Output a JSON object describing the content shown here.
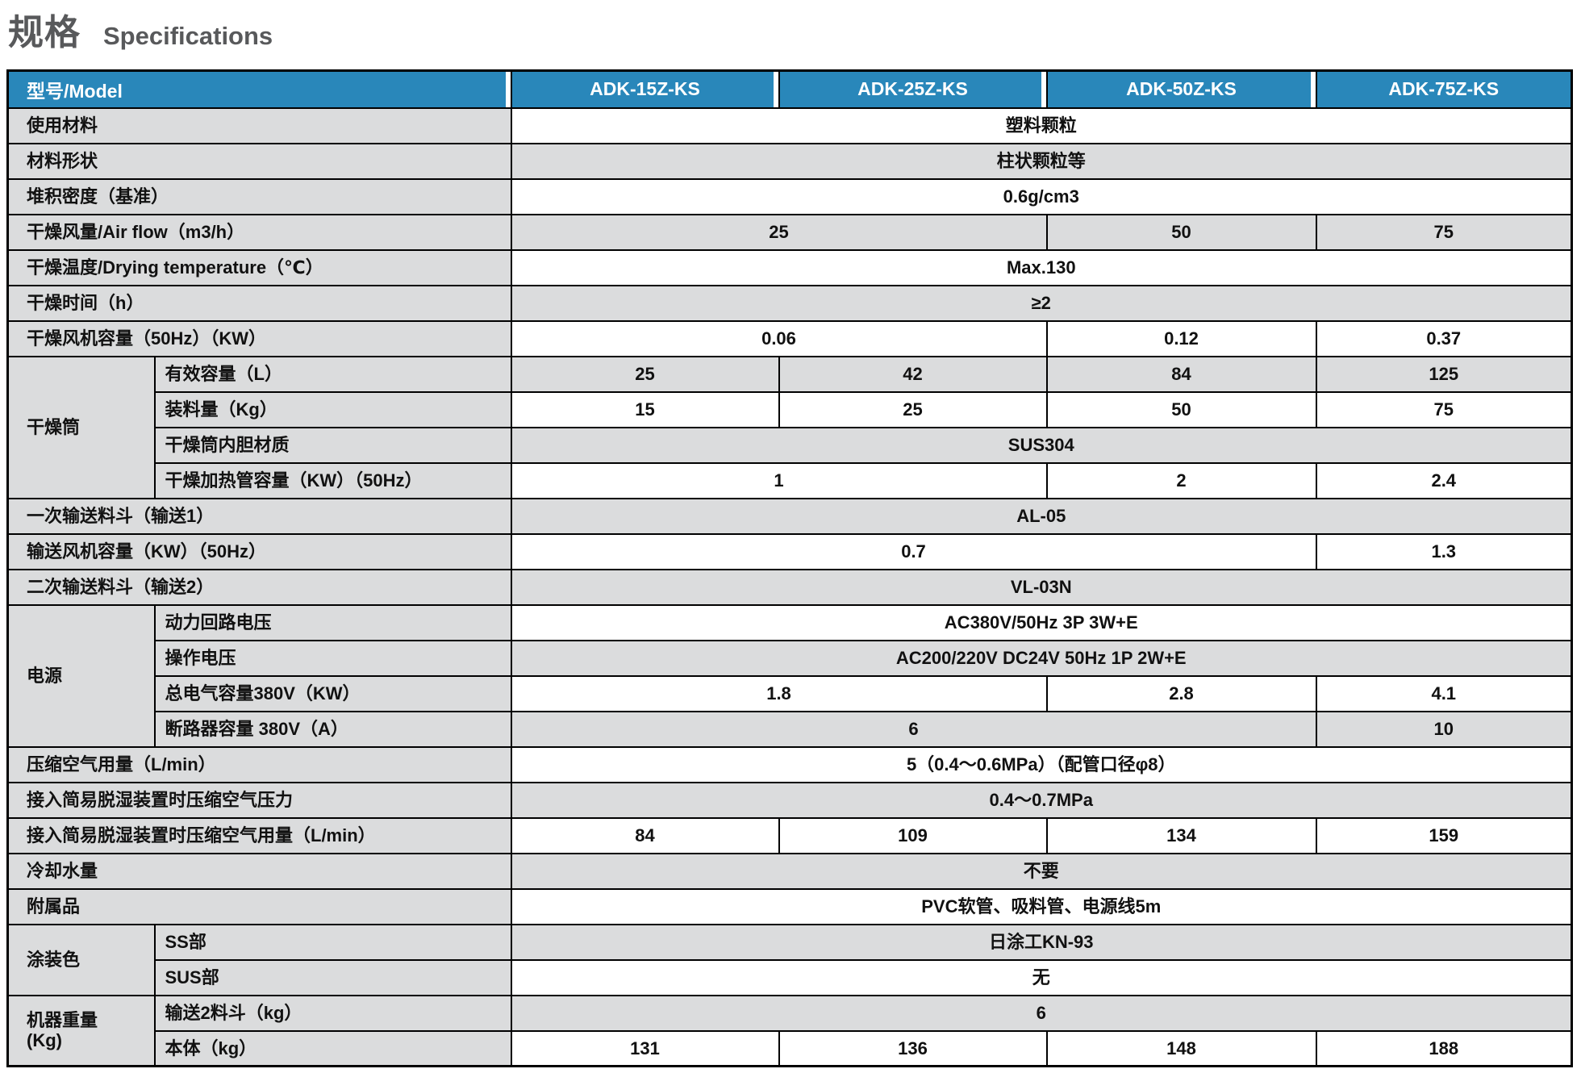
{
  "title": {
    "zh": "规格",
    "en": "Specifications"
  },
  "colors": {
    "header_bg": "#2987BA",
    "header_text": "#FFFFFF",
    "label_cell_bg": "#DBDCDD",
    "shaded_value_bg": "#DBDCDD",
    "value_bg": "#FFFFFF",
    "border": "#000000",
    "title_text": "#58595B"
  },
  "table": {
    "corner_label": "型号/Model",
    "models": [
      "ADK-15Z-KS",
      "ADK-25Z-KS",
      "ADK-50Z-KS",
      "ADK-75Z-KS"
    ],
    "rows": [
      {
        "label": "使用材料",
        "cells": [
          {
            "text": "塑料颗粒",
            "span": 4
          }
        ],
        "shaded": false
      },
      {
        "label": "材料形状",
        "cells": [
          {
            "text": "柱状颗粒等",
            "span": 4
          }
        ],
        "shaded": true
      },
      {
        "label": "堆积密度（基准）",
        "cells": [
          {
            "text": "0.6g/cm3",
            "span": 4
          }
        ],
        "shaded": false
      },
      {
        "label": "干燥风量/Air flow（m3/h）",
        "cells": [
          {
            "text": "25",
            "span": 2
          },
          {
            "text": "50",
            "span": 1
          },
          {
            "text": "75",
            "span": 1
          }
        ],
        "shaded": true
      },
      {
        "label": "干燥温度/Drying temperature（℃）",
        "cells": [
          {
            "text": "Max.130",
            "span": 4
          }
        ],
        "shaded": false
      },
      {
        "label": "干燥时间（h）",
        "cells": [
          {
            "text": "≥2",
            "span": 4
          }
        ],
        "shaded": true
      },
      {
        "label": "干燥风机容量（50Hz）（KW）",
        "cells": [
          {
            "text": "0.06",
            "span": 2
          },
          {
            "text": "0.12",
            "span": 1
          },
          {
            "text": "0.37",
            "span": 1
          }
        ],
        "shaded": false
      },
      {
        "group": {
          "label": "干燥筒",
          "rowspan": 4
        },
        "in_group": true,
        "label": "有效容量（L）",
        "cells": [
          {
            "text": "25",
            "span": 1
          },
          {
            "text": "42",
            "span": 1
          },
          {
            "text": "84",
            "span": 1
          },
          {
            "text": "125",
            "span": 1
          }
        ],
        "shaded": true
      },
      {
        "in_group": true,
        "label": "装料量（Kg）",
        "cells": [
          {
            "text": "15",
            "span": 1
          },
          {
            "text": "25",
            "span": 1
          },
          {
            "text": "50",
            "span": 1
          },
          {
            "text": "75",
            "span": 1
          }
        ],
        "shaded": false
      },
      {
        "in_group": true,
        "label": "干燥筒内胆材质",
        "cells": [
          {
            "text": "SUS304",
            "span": 4
          }
        ],
        "shaded": true
      },
      {
        "in_group": true,
        "label": "干燥加热管容量（KW）（50Hz）",
        "cells": [
          {
            "text": "1",
            "span": 2
          },
          {
            "text": "2",
            "span": 1
          },
          {
            "text": "2.4",
            "span": 1
          }
        ],
        "shaded": false
      },
      {
        "label": "一次输送料斗（输送1）",
        "cells": [
          {
            "text": "AL-05",
            "span": 4
          }
        ],
        "shaded": true
      },
      {
        "label": "输送风机容量（KW）（50Hz）",
        "cells": [
          {
            "text": "0.7",
            "span": 3
          },
          {
            "text": "1.3",
            "span": 1
          }
        ],
        "shaded": false
      },
      {
        "label": "二次输送料斗（输送2）",
        "cells": [
          {
            "text": "VL-03N",
            "span": 4
          }
        ],
        "shaded": true
      },
      {
        "group": {
          "label": "电源",
          "rowspan": 4
        },
        "in_group": true,
        "label": "动力回路电压",
        "cells": [
          {
            "text": "AC380V/50Hz 3P 3W+E",
            "span": 4
          }
        ],
        "shaded": false
      },
      {
        "in_group": true,
        "label": "操作电压",
        "cells": [
          {
            "text": "AC200/220V DC24V 50Hz 1P 2W+E",
            "span": 4
          }
        ],
        "shaded": true
      },
      {
        "in_group": true,
        "label": "总电气容量380V（KW）",
        "cells": [
          {
            "text": "1.8",
            "span": 2
          },
          {
            "text": "2.8",
            "span": 1
          },
          {
            "text": "4.1",
            "span": 1
          }
        ],
        "shaded": false
      },
      {
        "in_group": true,
        "label": "断路器容量 380V（A）",
        "cells": [
          {
            "text": "6",
            "span": 3
          },
          {
            "text": "10",
            "span": 1
          }
        ],
        "shaded": true
      },
      {
        "label": "压缩空气用量（L/min）",
        "cells": [
          {
            "text": "5（0.4～0.6MPa）（配管口径φ8）",
            "span": 4
          }
        ],
        "shaded": false
      },
      {
        "label": "接入简易脱湿装置时压缩空气压力",
        "cells": [
          {
            "text": "0.4～0.7MPa",
            "span": 4
          }
        ],
        "shaded": true
      },
      {
        "label": "接入简易脱湿装置时压缩空气用量（L/min）",
        "cells": [
          {
            "text": "84",
            "span": 1
          },
          {
            "text": "109",
            "span": 1
          },
          {
            "text": "134",
            "span": 1
          },
          {
            "text": "159",
            "span": 1
          }
        ],
        "shaded": false
      },
      {
        "label": "冷却水量",
        "cells": [
          {
            "text": "不要",
            "span": 4
          }
        ],
        "shaded": true
      },
      {
        "label": "附属品",
        "cells": [
          {
            "text": "PVC软管、吸料管、电源线5m",
            "span": 4
          }
        ],
        "shaded": false
      },
      {
        "group": {
          "label": "涂装色",
          "rowspan": 2
        },
        "in_group": true,
        "label": "SS部",
        "cells": [
          {
            "text": "日涂工KN-93",
            "span": 4
          }
        ],
        "shaded": true
      },
      {
        "in_group": true,
        "label": "SUS部",
        "cells": [
          {
            "text": "无",
            "span": 4
          }
        ],
        "shaded": false
      },
      {
        "group": {
          "label": "机器重量\n(Kg)",
          "rowspan": 2
        },
        "in_group": true,
        "label": "输送2料斗（kg）",
        "cells": [
          {
            "text": "6",
            "span": 4
          }
        ],
        "shaded": true
      },
      {
        "in_group": true,
        "label": "本体（kg）",
        "cells": [
          {
            "text": "131",
            "span": 1
          },
          {
            "text": "136",
            "span": 1
          },
          {
            "text": "148",
            "span": 1
          },
          {
            "text": "188",
            "span": 1
          }
        ],
        "shaded": false
      }
    ]
  }
}
